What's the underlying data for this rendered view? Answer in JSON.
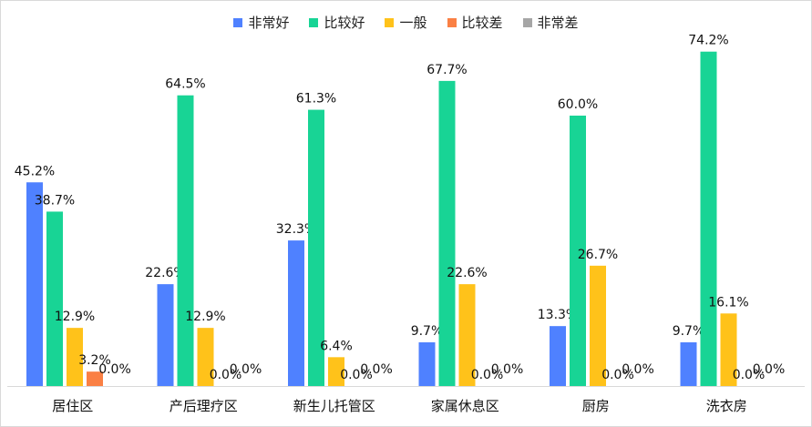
{
  "chart_data": {
    "type": "bar",
    "title": "",
    "xlabel": "",
    "ylabel": "",
    "ylim": [
      0,
      80
    ],
    "grid": false,
    "legend_position": "top",
    "categories": [
      "居住区",
      "产后理疗区",
      "新生儿托管区",
      "家属休息区",
      "厨房",
      "洗衣房"
    ],
    "series": [
      {
        "name": "非常好",
        "color": "#4f81ff",
        "values": [
          45.2,
          22.6,
          32.3,
          9.7,
          13.3,
          9.7
        ]
      },
      {
        "name": "比较好",
        "color": "#18d495",
        "values": [
          38.7,
          64.5,
          61.3,
          67.7,
          60.0,
          74.2
        ]
      },
      {
        "name": "一般",
        "color": "#ffc21a",
        "values": [
          12.9,
          12.9,
          6.4,
          22.6,
          26.7,
          16.1
        ]
      },
      {
        "name": "比较差",
        "color": "#fa8044",
        "values": [
          3.2,
          0.0,
          0.0,
          0.0,
          0.0,
          0.0
        ]
      },
      {
        "name": "非常差",
        "color": "#a6a6a6",
        "values": [
          0.0,
          0.0,
          0.0,
          0.0,
          0.0,
          0.0
        ]
      }
    ],
    "value_format": "percent_1dp"
  }
}
